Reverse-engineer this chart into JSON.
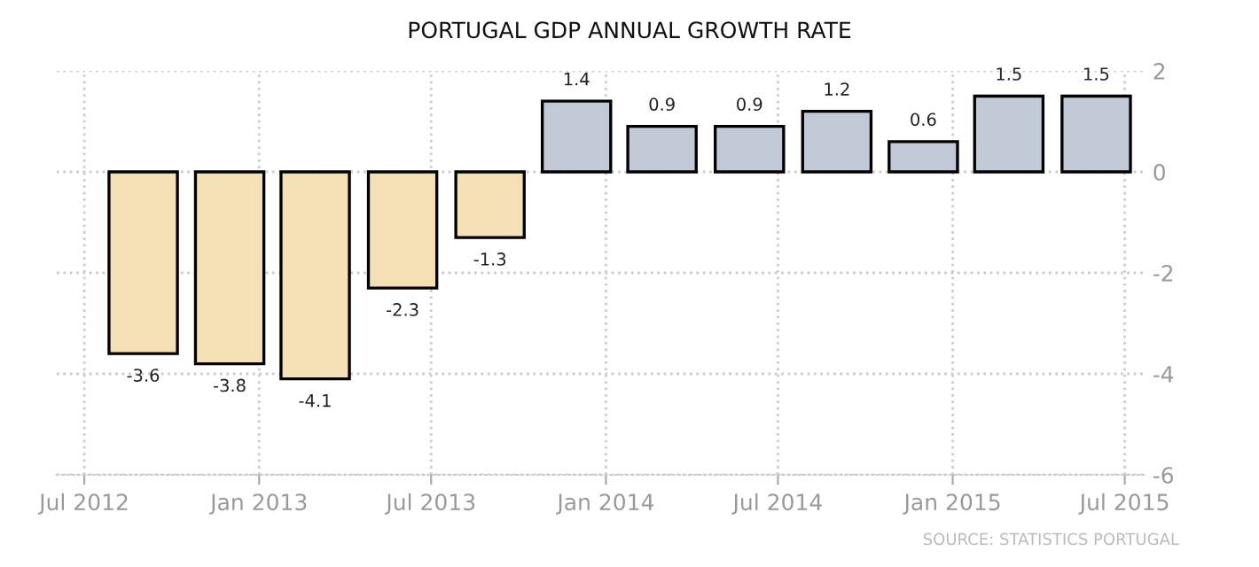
{
  "chart_data": {
    "type": "bar",
    "title": "PORTUGAL GDP ANNUAL GROWTH RATE",
    "x": [
      "2012-09-01",
      "2012-12-01",
      "2013-03-01",
      "2013-06-01",
      "2013-09-01",
      "2013-12-01",
      "2014-03-01",
      "2014-06-01",
      "2014-09-01",
      "2014-12-01",
      "2015-03-01",
      "2015-06-01"
    ],
    "values": [
      -3.6,
      -3.8,
      -4.1,
      -2.3,
      -1.3,
      1.4,
      0.9,
      0.9,
      1.2,
      0.6,
      1.5,
      1.5
    ],
    "colors": [
      "#f5dfb5",
      "#f5dfb5",
      "#f5dfb5",
      "#f5dfb5",
      "#f5dfb5",
      "#c0c9d5",
      "#c0c9d5",
      "#c0c9d5",
      "#c0c9d5",
      "#c0c9d5",
      "#c0c9d5",
      "#c0c9d5"
    ],
    "data_labels": true,
    "xlim": [
      "2012-06-02",
      "2015-07-21"
    ],
    "xticks": [
      {
        "value": "2012-07-01",
        "label": "Jul 2012"
      },
      {
        "value": "2013-01-01",
        "label": "Jan 2013"
      },
      {
        "value": "2013-07-01",
        "label": "Jul 2013"
      },
      {
        "value": "2014-01-01",
        "label": "Jan 2014"
      },
      {
        "value": "2014-07-01",
        "label": "Jul 2014"
      },
      {
        "value": "2015-01-01",
        "label": "Jan 2015"
      },
      {
        "value": "2015-07-01",
        "label": "Jul 2015"
      }
    ],
    "ylim": [
      -6,
      2
    ],
    "yticks": [
      -6,
      -4,
      -2,
      0,
      2
    ],
    "grid": true,
    "annotations": [
      "SOURCE: STATISTICS PORTUGAL"
    ]
  }
}
